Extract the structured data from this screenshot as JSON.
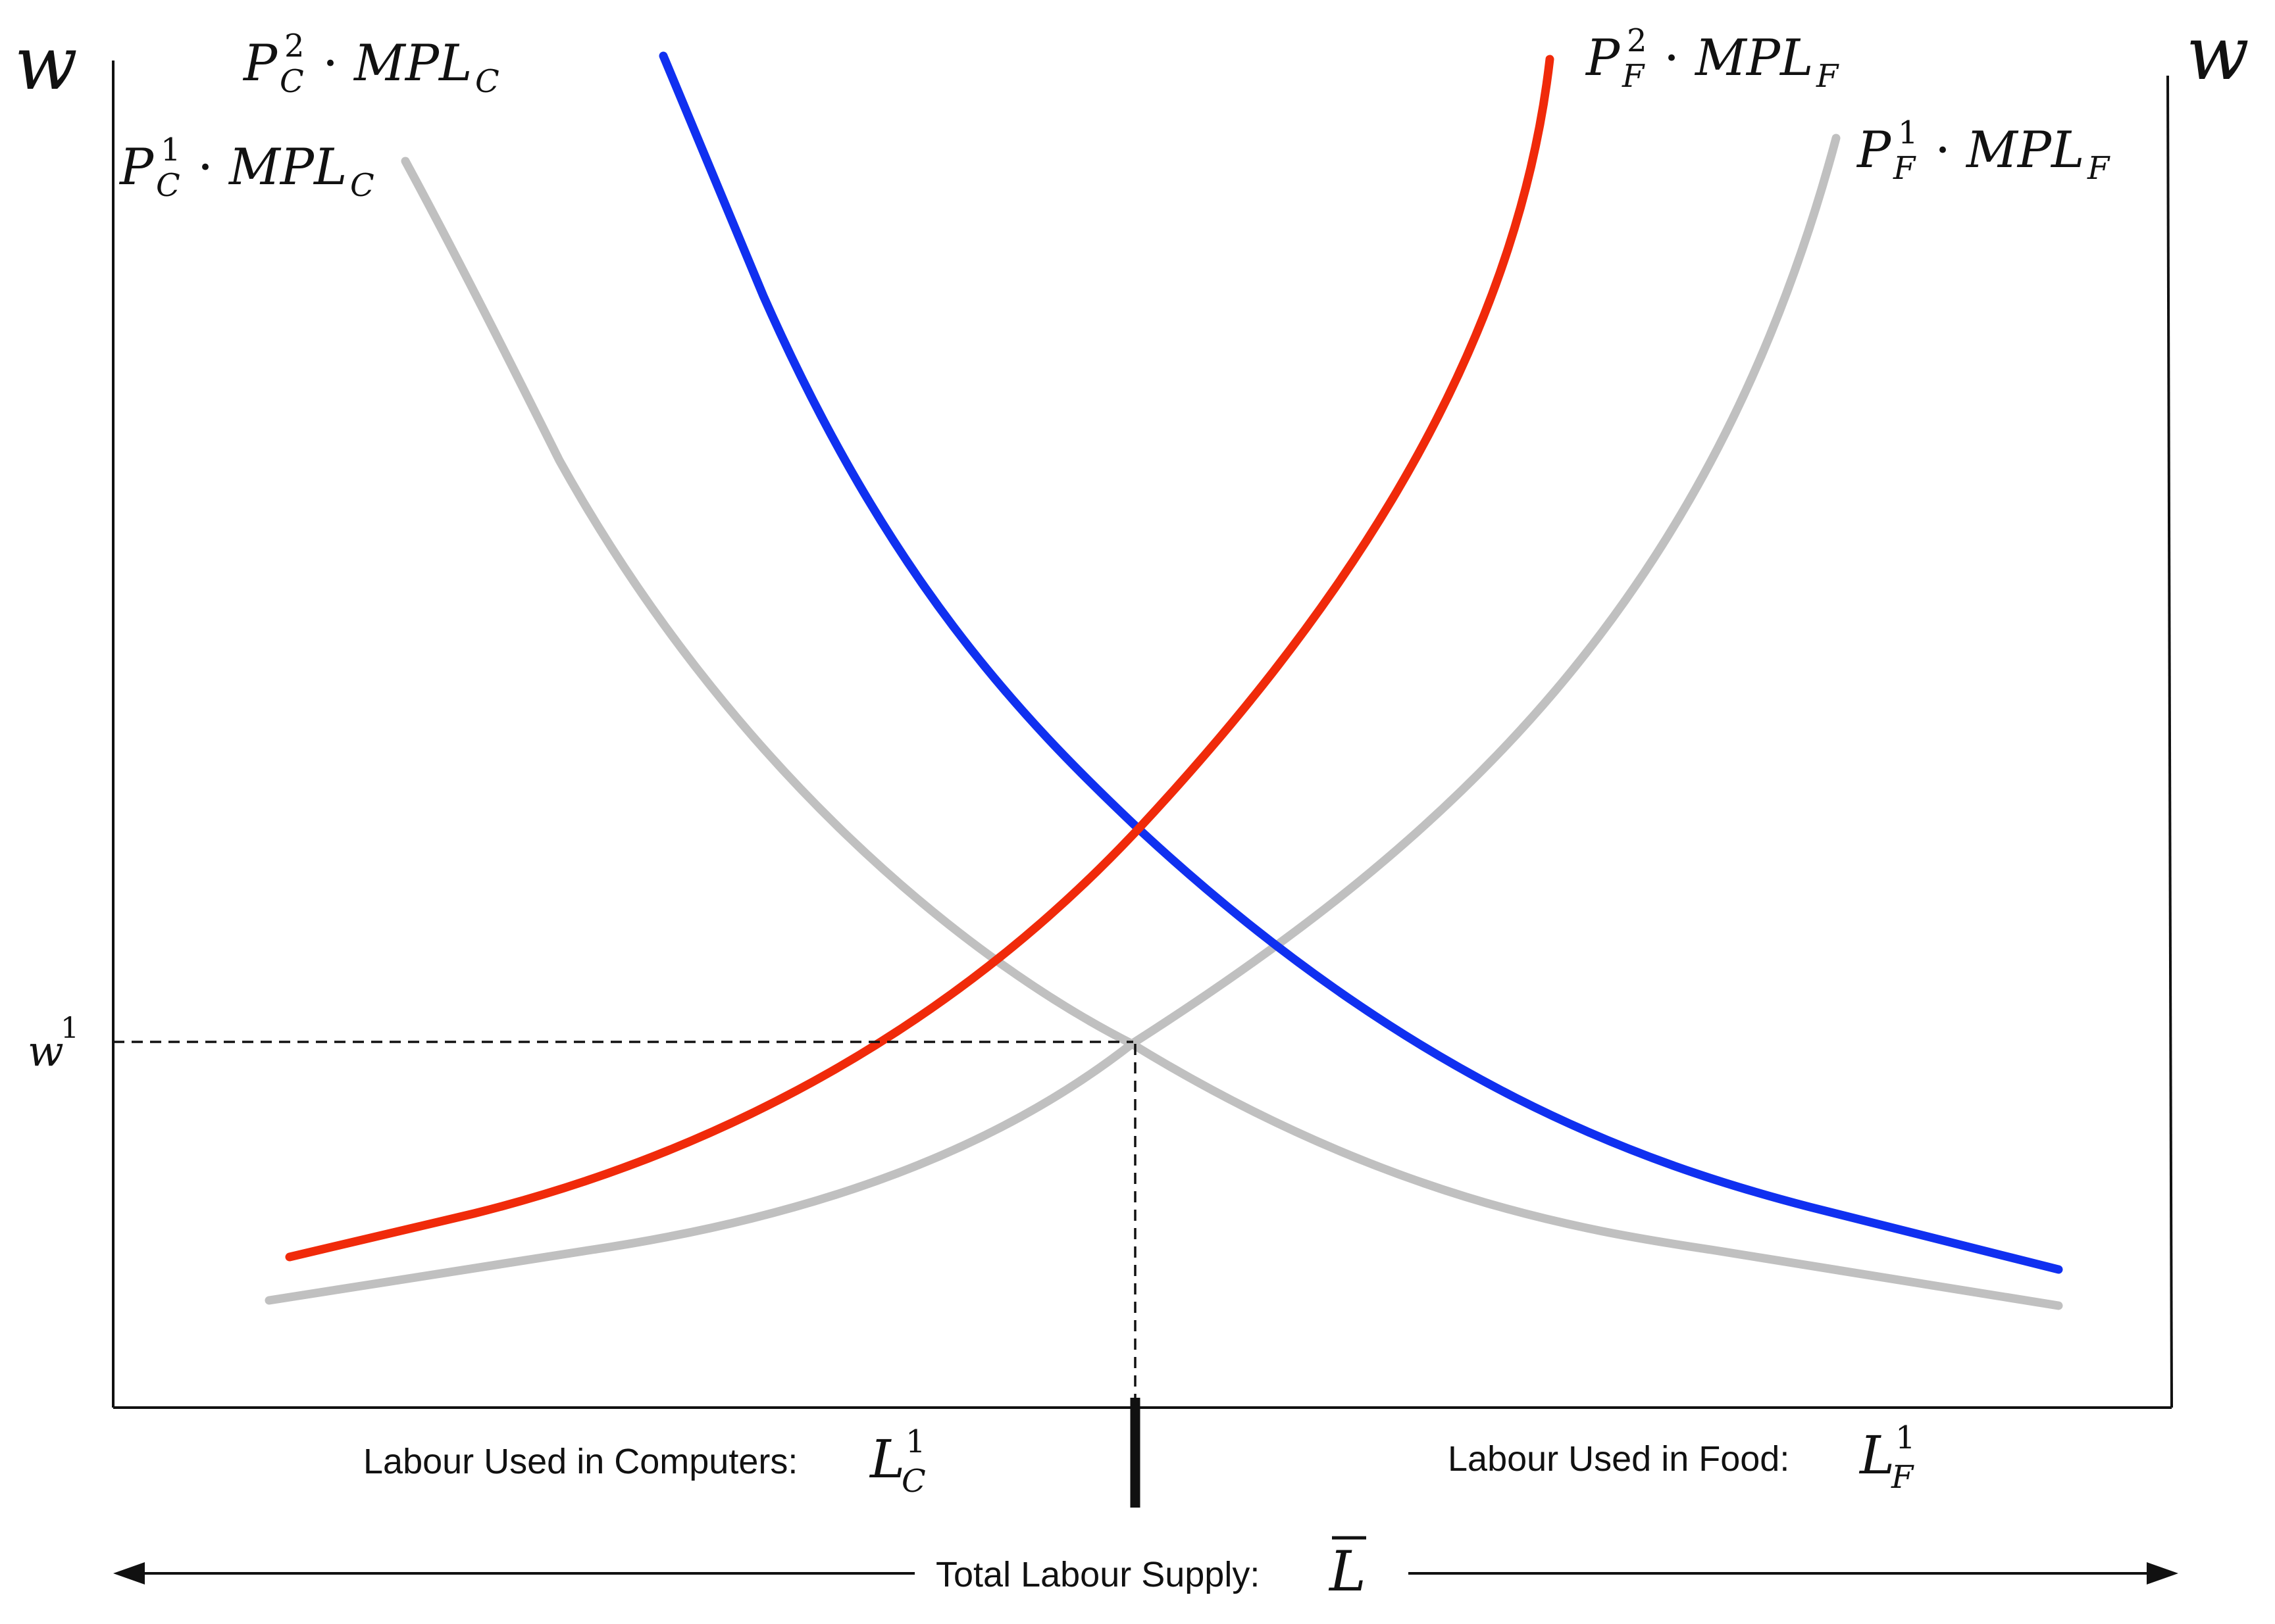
{
  "axes": {
    "left_label": "w",
    "right_label": "w",
    "wage_tick_base": "w",
    "wage_tick_sup": "1"
  },
  "curves": {
    "pc1": {
      "P": "P",
      "sub": "C",
      "sup": "1",
      "mpl": "MPL",
      "mpl_sub": "C",
      "color": "#c0c0c0"
    },
    "pc2": {
      "P": "P",
      "sub": "C",
      "sup": "2",
      "mpl": "MPL",
      "mpl_sub": "C",
      "color": "#1030f0"
    },
    "pf1": {
      "P": "P",
      "sub": "F",
      "sup": "1",
      "mpl": "MPL",
      "mpl_sub": "F",
      "color": "#c0c0c0"
    },
    "pf2": {
      "P": "P",
      "sub": "F",
      "sup": "2",
      "mpl": "MPL",
      "mpl_sub": "F",
      "color": "#f02a0a"
    }
  },
  "labels": {
    "computers_text": "Labour Used in Computers:",
    "computers_sym": "L",
    "computers_sub": "C",
    "computers_sup": "1",
    "food_text": "Labour Used in Food:",
    "food_sym": "L",
    "food_sub": "F",
    "food_sup": "1",
    "total_text": "Total Labour Supply:",
    "total_sym": "L"
  },
  "dot": "·"
}
